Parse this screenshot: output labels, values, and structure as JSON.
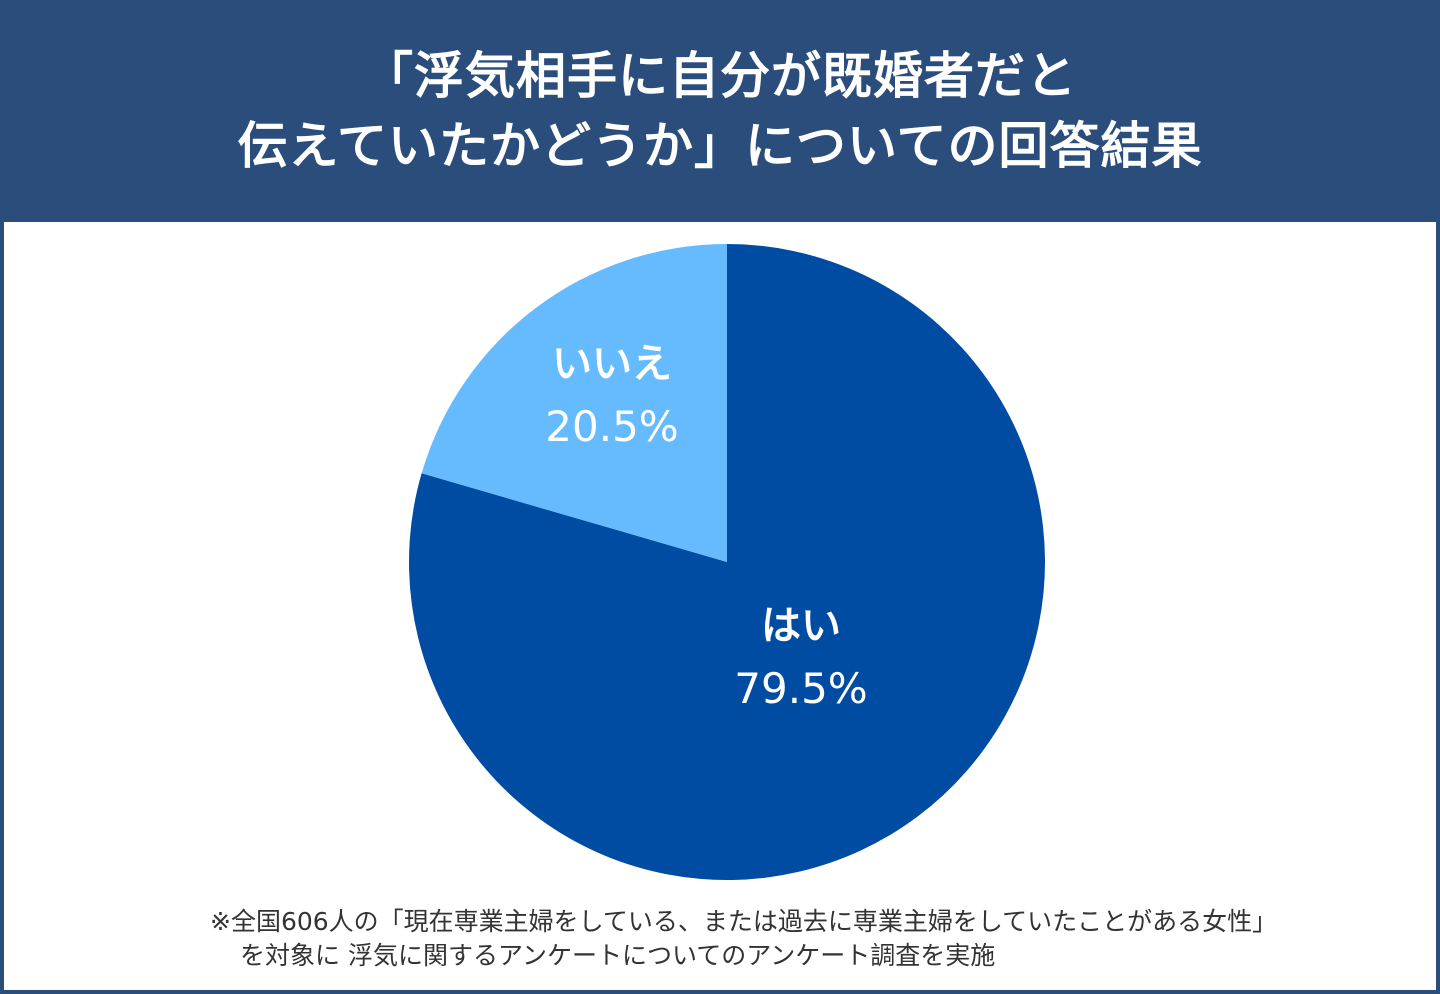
{
  "header": {
    "title_line1": "「浮気相手に自分が既婚者だと",
    "title_line2": "伝えていたかどうか」についての回答結果"
  },
  "colors": {
    "frame": "#2a4d7b",
    "yes": "#014ca3",
    "no": "#66bbff",
    "label": "#ffffff",
    "footnote": "#333333"
  },
  "chart_data": {
    "type": "pie",
    "title": "「浮気相手に自分が既婚者だと伝えていたかどうか」についての回答結果",
    "categories": [
      "はい",
      "いいえ"
    ],
    "values": [
      79.5,
      20.5
    ],
    "unit": "%",
    "start_angle": "12 o'clock, clockwise",
    "labels": [
      {
        "name": "はい",
        "value": "79.5%"
      },
      {
        "name": "いいえ",
        "value": "20.5%"
      }
    ],
    "legend": "none (labels inside slices)",
    "sample_size": 606
  },
  "slices": {
    "yes": {
      "name": "はい",
      "pct": "79.5%"
    },
    "no": {
      "name": "いいえ",
      "pct": "20.5%"
    }
  },
  "footnote": {
    "line1": "※全国606人の「現在専業主婦をしている、または過去に専業主婦をしていたことがある女性」",
    "line2": "を対象に 浮気に関するアンケートについてのアンケート調査を実施"
  }
}
